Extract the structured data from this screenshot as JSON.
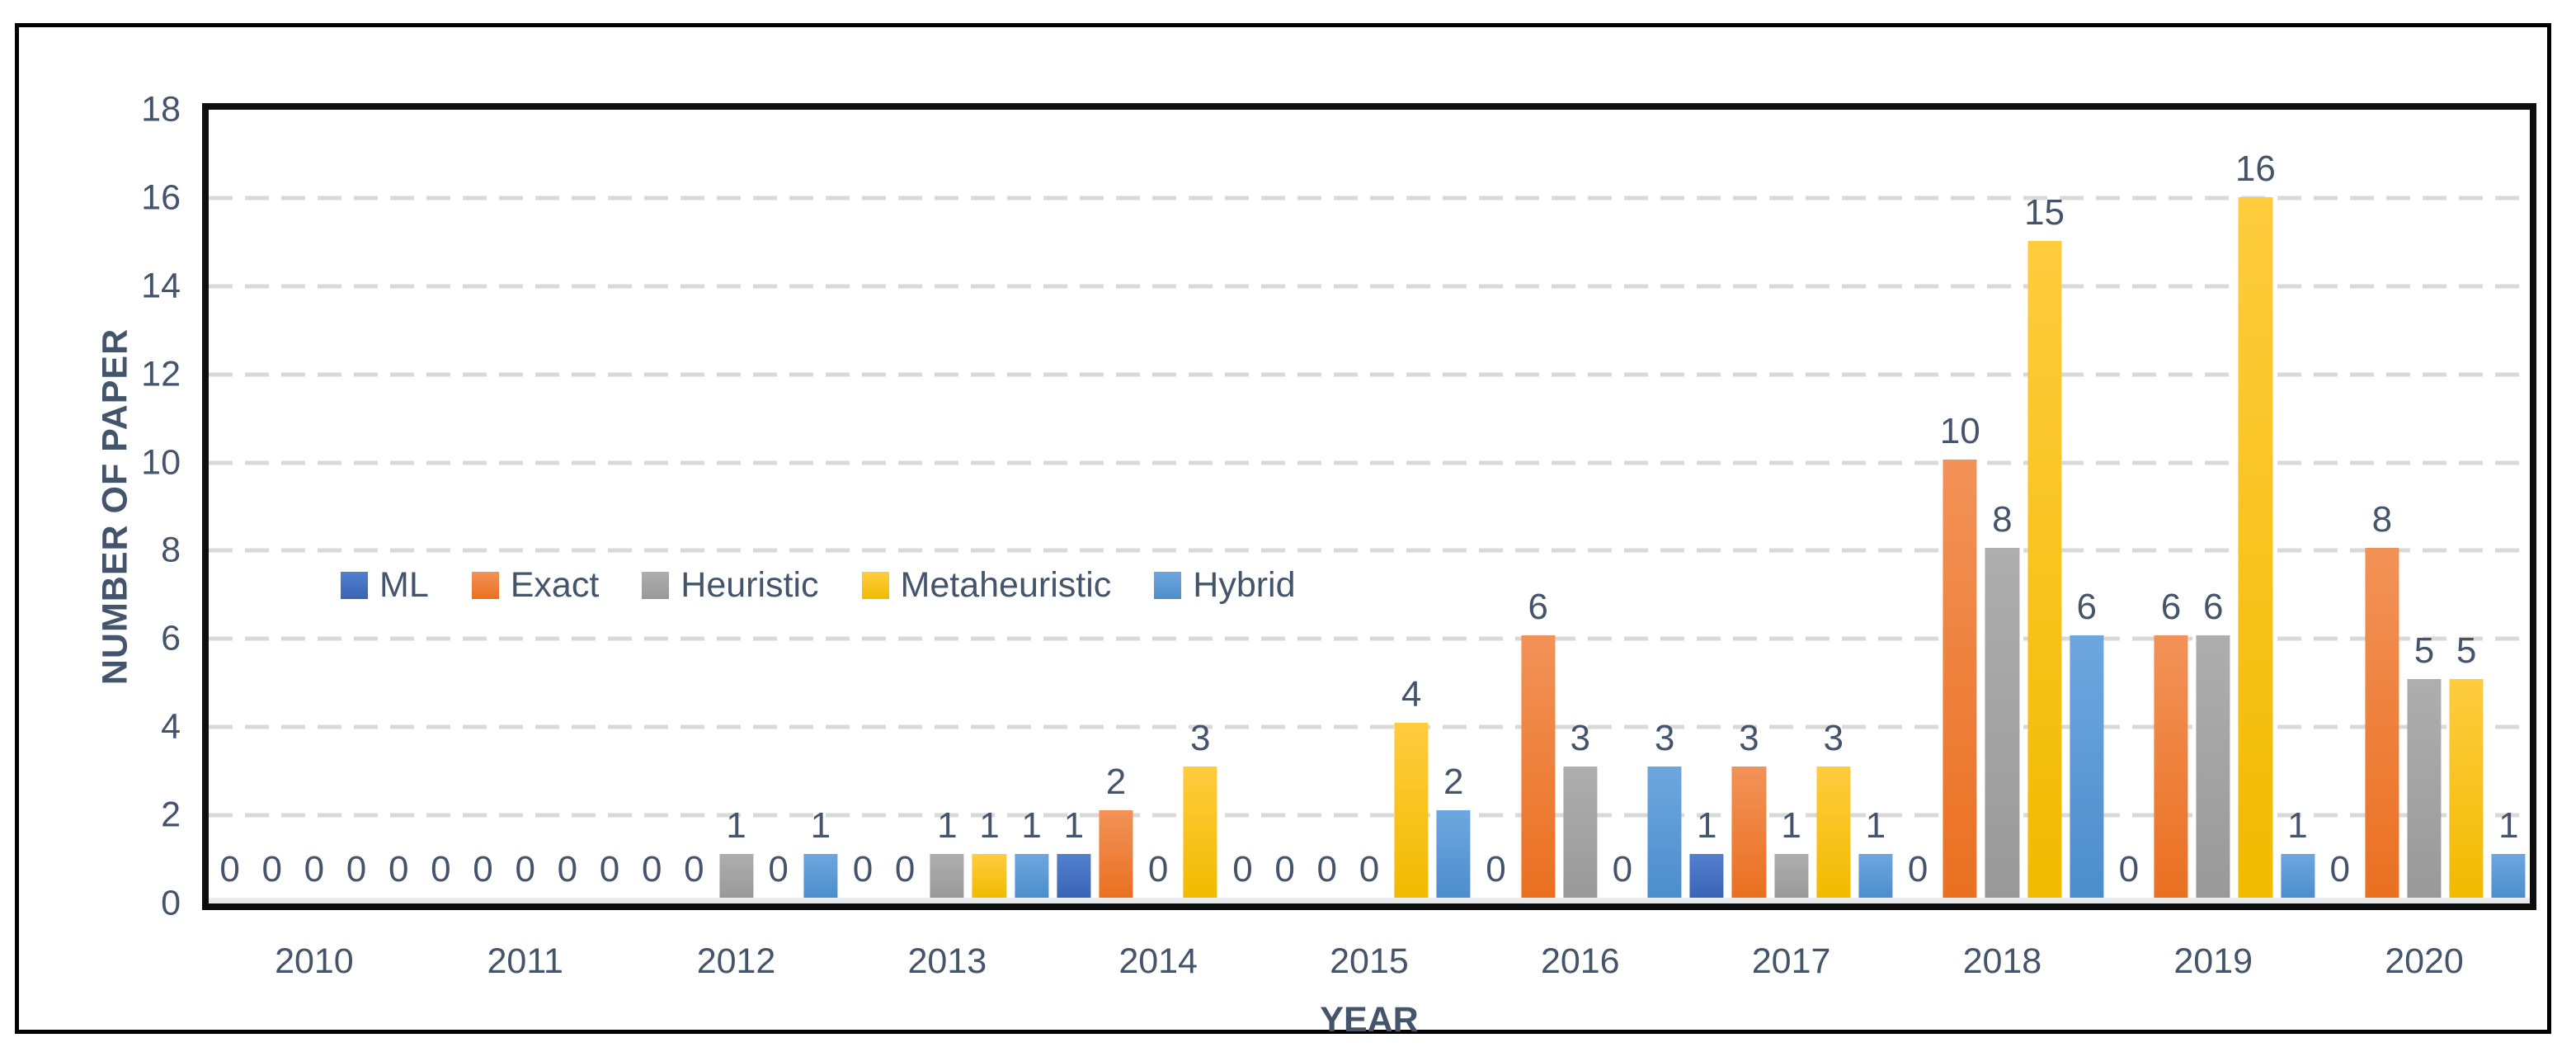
{
  "chart_data": {
    "type": "bar",
    "title": "",
    "xlabel": "YEAR",
    "ylabel": "NUMBER OF PAPER",
    "ylim": [
      0,
      18
    ],
    "ytick_step": 2,
    "grid": "horizontal-dashed",
    "legend_position": "inside-plot-left",
    "data_labels": "above-bars",
    "categories": [
      "2010",
      "2011",
      "2012",
      "2013",
      "2014",
      "2015",
      "2016",
      "2017",
      "2018",
      "2019",
      "2020"
    ],
    "series": [
      {
        "name": "ML",
        "color": "#4472C4",
        "color_top": "#5280CF",
        "color_bottom": "#3A64B5",
        "values": [
          0,
          0,
          0,
          0,
          1,
          0,
          0,
          1,
          0,
          0,
          0
        ]
      },
      {
        "name": "Exact",
        "color": "#ED7D31",
        "color_top": "#F29258",
        "color_bottom": "#EA7021",
        "values": [
          0,
          0,
          0,
          0,
          2,
          0,
          6,
          3,
          10,
          6,
          8
        ]
      },
      {
        "name": "Heuristic",
        "color": "#A5A5A5",
        "color_top": "#AEAEAE",
        "color_bottom": "#999999",
        "values": [
          0,
          0,
          1,
          1,
          0,
          0,
          3,
          1,
          8,
          6,
          5
        ]
      },
      {
        "name": "Metaheuristic",
        "color": "#FFC000",
        "color_top": "#FFCC3F",
        "color_bottom": "#F0BB00",
        "values": [
          0,
          0,
          0,
          1,
          3,
          4,
          0,
          3,
          15,
          16,
          5
        ]
      },
      {
        "name": "Hybrid",
        "color": "#5B9BD5",
        "color_top": "#6EA7DF",
        "color_bottom": "#4C8DCC",
        "values": [
          0,
          0,
          1,
          1,
          0,
          2,
          3,
          1,
          6,
          1,
          1
        ]
      }
    ],
    "colors": {
      "text": "#44546A",
      "gridline": "#D9D9D9",
      "plot_border": "#0d0d0d",
      "baseline": "#E9EAEC"
    }
  }
}
